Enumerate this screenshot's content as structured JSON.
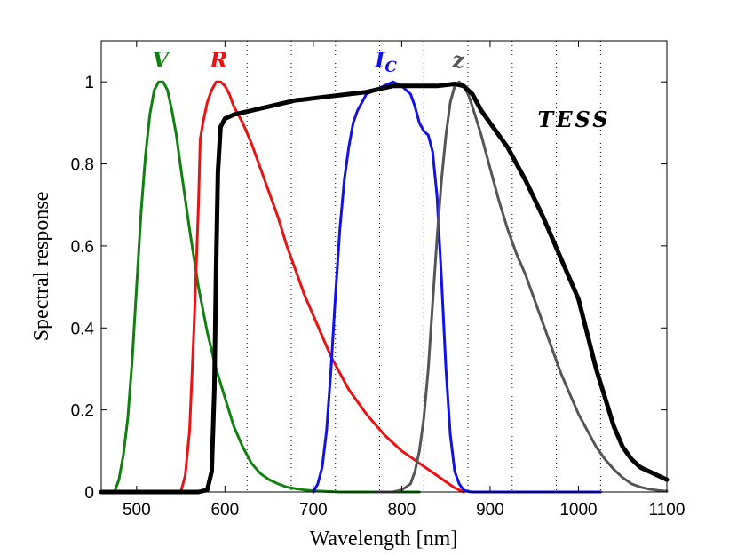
{
  "chart_data": {
    "type": "line",
    "title": "",
    "xlabel": "Wavelength [nm]",
    "ylabel": "Spectral response",
    "xlim": [
      460,
      1100
    ],
    "ylim": [
      0,
      1.1
    ],
    "x_ticks": [
      500,
      600,
      700,
      800,
      900,
      1000,
      1100
    ],
    "x_tick_labels": [
      "500",
      "600",
      "700",
      "800",
      "900",
      "1000",
      "1100"
    ],
    "y_ticks": [
      0,
      0.2,
      0.4,
      0.6,
      0.8,
      1
    ],
    "y_tick_labels": [
      "0",
      "0.2",
      "0.4",
      "0.6",
      "0.8",
      "1"
    ],
    "vertical_gridlines": [
      625,
      675,
      725,
      775,
      825,
      875,
      925,
      975,
      1025
    ],
    "series": [
      {
        "name": "V",
        "label": "V",
        "subscript": "",
        "color": "#108010",
        "width": 3,
        "label_position": [
          527,
          1.035
        ],
        "x": [
          475,
          480,
          485,
          490,
          495,
          500,
          505,
          510,
          515,
          520,
          525,
          530,
          535,
          540,
          545,
          550,
          560,
          570,
          580,
          590,
          600,
          610,
          620,
          630,
          640,
          650,
          660,
          670,
          680,
          690,
          700,
          710,
          720,
          730,
          740,
          760,
          780,
          800,
          820
        ],
        "y": [
          0.0,
          0.03,
          0.09,
          0.18,
          0.32,
          0.5,
          0.68,
          0.82,
          0.92,
          0.98,
          1.0,
          1.0,
          0.98,
          0.93,
          0.87,
          0.79,
          0.64,
          0.5,
          0.39,
          0.3,
          0.23,
          0.16,
          0.11,
          0.07,
          0.045,
          0.03,
          0.02,
          0.012,
          0.008,
          0.005,
          0.003,
          0.002,
          0.001,
          0.0,
          0.0,
          0.0,
          0.0,
          0.0,
          0.0
        ]
      },
      {
        "name": "R",
        "label": "R",
        "subscript": "",
        "color": "#ee1111",
        "width": 3,
        "label_position": [
          593,
          1.035
        ],
        "x": [
          550,
          555,
          560,
          565,
          570,
          572,
          575,
          580,
          585,
          590,
          595,
          600,
          605,
          610,
          620,
          630,
          640,
          650,
          660,
          670,
          680,
          690,
          700,
          710,
          720,
          730,
          740,
          750,
          760,
          770,
          780,
          790,
          800,
          810,
          820,
          830,
          840,
          850,
          860,
          870
        ],
        "y": [
          0.0,
          0.04,
          0.15,
          0.4,
          0.7,
          0.86,
          0.9,
          0.95,
          0.98,
          1.0,
          1.0,
          0.99,
          0.97,
          0.94,
          0.9,
          0.85,
          0.79,
          0.73,
          0.67,
          0.6,
          0.54,
          0.48,
          0.43,
          0.38,
          0.33,
          0.29,
          0.25,
          0.22,
          0.19,
          0.165,
          0.14,
          0.12,
          0.1,
          0.085,
          0.07,
          0.055,
          0.04,
          0.025,
          0.01,
          0.0
        ]
      },
      {
        "name": "IC",
        "label": "I",
        "subscript": "C",
        "color": "#1111ee",
        "width": 3,
        "label_position": [
          782,
          1.035
        ],
        "x": [
          700,
          705,
          710,
          715,
          720,
          725,
          730,
          735,
          740,
          745,
          750,
          755,
          760,
          770,
          780,
          790,
          800,
          810,
          815,
          820,
          825,
          830,
          835,
          840,
          845,
          850,
          855,
          860,
          865,
          870,
          875,
          880,
          900,
          950,
          1000,
          1025
        ],
        "y": [
          0.0,
          0.02,
          0.06,
          0.15,
          0.3,
          0.48,
          0.64,
          0.76,
          0.84,
          0.9,
          0.93,
          0.95,
          0.97,
          0.98,
          0.99,
          1.0,
          0.99,
          0.97,
          0.94,
          0.9,
          0.88,
          0.87,
          0.83,
          0.72,
          0.52,
          0.3,
          0.14,
          0.05,
          0.02,
          0.005,
          0.001,
          0.0,
          0.0,
          0.0,
          0.0,
          0.0
        ]
      },
      {
        "name": "z",
        "label": "z",
        "subscript": "",
        "color": "#555555",
        "width": 3,
        "label_position": [
          864,
          1.035
        ],
        "x": [
          770,
          780,
          790,
          800,
          810,
          815,
          820,
          825,
          830,
          835,
          840,
          845,
          850,
          855,
          860,
          865,
          870,
          875,
          880,
          890,
          900,
          910,
          920,
          930,
          940,
          950,
          960,
          970,
          980,
          990,
          1000,
          1010,
          1020,
          1030,
          1040,
          1050,
          1060,
          1070,
          1080,
          1090,
          1100
        ],
        "y": [
          0.0,
          0.0,
          0.0,
          0.005,
          0.02,
          0.05,
          0.1,
          0.18,
          0.3,
          0.46,
          0.62,
          0.76,
          0.87,
          0.95,
          0.99,
          1.0,
          0.99,
          0.97,
          0.94,
          0.87,
          0.79,
          0.71,
          0.64,
          0.58,
          0.53,
          0.47,
          0.41,
          0.35,
          0.29,
          0.24,
          0.19,
          0.15,
          0.11,
          0.08,
          0.055,
          0.035,
          0.02,
          0.012,
          0.007,
          0.004,
          0.002
        ]
      },
      {
        "name": "TESS",
        "label": "TESS",
        "subscript": "",
        "color": "#000000",
        "width": 5,
        "label_position": [
          995,
          0.89
        ],
        "x": [
          460,
          500,
          550,
          570,
          580,
          585,
          588,
          590,
          592,
          595,
          600,
          605,
          610,
          620,
          630,
          640,
          650,
          660,
          670,
          680,
          690,
          700,
          720,
          740,
          760,
          780,
          790,
          800,
          820,
          840,
          860,
          870,
          880,
          890,
          900,
          920,
          940,
          960,
          980,
          1000,
          1020,
          1040,
          1050,
          1060,
          1070,
          1080,
          1090,
          1100
        ],
        "y": [
          0.0,
          0.0,
          0.0,
          0.0,
          0.005,
          0.05,
          0.25,
          0.55,
          0.78,
          0.89,
          0.91,
          0.915,
          0.92,
          0.925,
          0.93,
          0.935,
          0.94,
          0.945,
          0.95,
          0.955,
          0.957,
          0.96,
          0.965,
          0.97,
          0.975,
          0.985,
          0.99,
          0.99,
          0.99,
          0.99,
          0.995,
          0.99,
          0.97,
          0.93,
          0.9,
          0.84,
          0.76,
          0.67,
          0.57,
          0.47,
          0.3,
          0.16,
          0.11,
          0.08,
          0.06,
          0.05,
          0.04,
          0.03
        ]
      }
    ]
  }
}
